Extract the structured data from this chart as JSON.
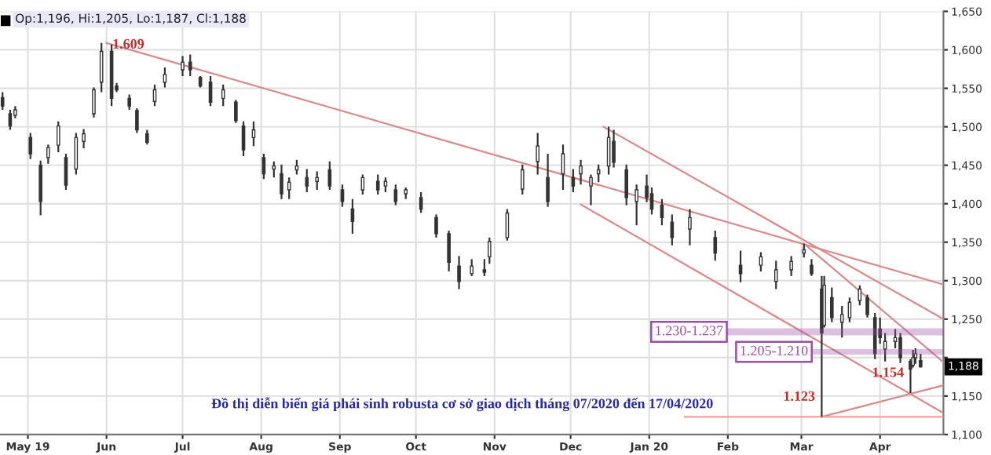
{
  "chart_data": {
    "type": "candlestick",
    "x": [
      "2019-04-21",
      "2019-04-24",
      "2019-04-26",
      "2019-05-02",
      "2019-05-06",
      "2019-05-09",
      "2019-05-13",
      "2019-05-16",
      "2019-05-20",
      "2019-05-23",
      "2019-05-27",
      "2019-05-30",
      "2019-06-03",
      "2019-06-05",
      "2019-06-10",
      "2019-06-13",
      "2019-06-17",
      "2019-06-20",
      "2019-06-24",
      "2019-07-01",
      "2019-07-04",
      "2019-07-08",
      "2019-07-12",
      "2019-07-17",
      "2019-07-22",
      "2019-07-25",
      "2019-07-29",
      "2019-08-02",
      "2019-08-06",
      "2019-08-09",
      "2019-08-12",
      "2019-08-15",
      "2019-08-19",
      "2019-08-23",
      "2019-08-28",
      "2019-09-02",
      "2019-09-06",
      "2019-09-10",
      "2019-09-16",
      "2019-09-19",
      "2019-09-23",
      "2019-09-27",
      "2019-10-03",
      "2019-10-09",
      "2019-10-14",
      "2019-10-18",
      "2019-10-23",
      "2019-10-28",
      "2019-10-30",
      "2019-11-06",
      "2019-11-12",
      "2019-11-18",
      "2019-11-22",
      "2019-11-28",
      "2019-12-02",
      "2019-12-05",
      "2019-12-09",
      "2019-12-12",
      "2019-12-16",
      "2019-12-18",
      "2019-12-23",
      "2019-12-27",
      "2019-12-31",
      "2020-01-02",
      "2020-01-06",
      "2020-01-10",
      "2020-01-17",
      "2020-01-27",
      "2020-02-06",
      "2020-02-14",
      "2020-02-20",
      "2020-02-26",
      "2020-03-02",
      "2020-03-05",
      "2020-03-09",
      "2020-03-10",
      "2020-03-13",
      "2020-03-17",
      "2020-03-20",
      "2020-03-24",
      "2020-03-27",
      "2020-03-30",
      "2020-04-01",
      "2020-04-03",
      "2020-04-07",
      "2020-04-09",
      "2020-04-13",
      "2020-04-14",
      "2020-04-15",
      "2020-04-17"
    ],
    "ohlc": [
      [
        1538,
        1545,
        1522,
        1527
      ],
      [
        1517,
        1522,
        1496,
        1501
      ],
      [
        1515,
        1527,
        1511,
        1522
      ],
      [
        1486,
        1492,
        1458,
        1465
      ],
      [
        1450,
        1456,
        1385,
        1403
      ],
      [
        1460,
        1477,
        1452,
        1473
      ],
      [
        1476,
        1507,
        1467,
        1501
      ],
      [
        1460,
        1465,
        1418,
        1424
      ],
      [
        1445,
        1492,
        1438,
        1486
      ],
      [
        1481,
        1497,
        1472,
        1491
      ],
      [
        1517,
        1551,
        1512,
        1548
      ],
      [
        1558,
        1609,
        1545,
        1598
      ],
      [
        1598,
        1607,
        1527,
        1537
      ],
      [
        1553,
        1557,
        1545,
        1548
      ],
      [
        1537,
        1542,
        1522,
        1527
      ],
      [
        1521,
        1524,
        1492,
        1496
      ],
      [
        1491,
        1496,
        1477,
        1480
      ],
      [
        1533,
        1555,
        1527,
        1548
      ],
      [
        1558,
        1577,
        1551,
        1568
      ],
      [
        1574,
        1592,
        1566,
        1584
      ],
      [
        1584,
        1594,
        1566,
        1574
      ],
      [
        1564,
        1566,
        1551,
        1553
      ],
      [
        1558,
        1566,
        1527,
        1532
      ],
      [
        1537,
        1555,
        1527,
        1548
      ],
      [
        1532,
        1535,
        1505,
        1508
      ],
      [
        1501,
        1507,
        1462,
        1470
      ],
      [
        1486,
        1507,
        1475,
        1496
      ],
      [
        1460,
        1465,
        1432,
        1439
      ],
      [
        1445,
        1455,
        1434,
        1449
      ],
      [
        1439,
        1451,
        1406,
        1413
      ],
      [
        1418,
        1434,
        1406,
        1428
      ],
      [
        1444,
        1457,
        1438,
        1449
      ],
      [
        1434,
        1445,
        1415,
        1423
      ],
      [
        1429,
        1442,
        1418,
        1434
      ],
      [
        1444,
        1455,
        1418,
        1423
      ],
      [
        1418,
        1425,
        1396,
        1403
      ],
      [
        1393,
        1406,
        1361,
        1377
      ],
      [
        1418,
        1438,
        1412,
        1434
      ],
      [
        1429,
        1438,
        1412,
        1418
      ],
      [
        1423,
        1434,
        1415,
        1429
      ],
      [
        1418,
        1425,
        1398,
        1403
      ],
      [
        1413,
        1421,
        1406,
        1418
      ],
      [
        1408,
        1415,
        1388,
        1393
      ],
      [
        1382,
        1386,
        1356,
        1361
      ],
      [
        1361,
        1365,
        1312,
        1324
      ],
      [
        1319,
        1332,
        1289,
        1299
      ],
      [
        1309,
        1328,
        1306,
        1319
      ],
      [
        1314,
        1328,
        1306,
        1311
      ],
      [
        1331,
        1356,
        1322,
        1351
      ],
      [
        1356,
        1393,
        1352,
        1388
      ],
      [
        1419,
        1451,
        1412,
        1444
      ],
      [
        1455,
        1492,
        1438,
        1475
      ],
      [
        1434,
        1465,
        1396,
        1403
      ],
      [
        1439,
        1477,
        1418,
        1465
      ],
      [
        1434,
        1445,
        1415,
        1423
      ],
      [
        1439,
        1457,
        1425,
        1449
      ],
      [
        1423,
        1438,
        1398,
        1434
      ],
      [
        1439,
        1451,
        1428,
        1444
      ],
      [
        1449,
        1500,
        1438,
        1486
      ],
      [
        1481,
        1496,
        1447,
        1454
      ],
      [
        1444,
        1451,
        1398,
        1408
      ],
      [
        1403,
        1425,
        1372,
        1418
      ],
      [
        1423,
        1438,
        1402,
        1408
      ],
      [
        1413,
        1421,
        1386,
        1393
      ],
      [
        1398,
        1406,
        1372,
        1382
      ],
      [
        1376,
        1386,
        1346,
        1356
      ],
      [
        1367,
        1393,
        1346,
        1382
      ],
      [
        1356,
        1365,
        1326,
        1336
      ],
      [
        1320,
        1339,
        1298,
        1309
      ],
      [
        1320,
        1337,
        1312,
        1331
      ],
      [
        1299,
        1326,
        1289,
        1314
      ],
      [
        1314,
        1332,
        1306,
        1325
      ],
      [
        1336,
        1348,
        1330,
        1340
      ],
      [
        1320,
        1328,
        1306,
        1309
      ],
      [
        1289,
        1306,
        1123,
        1232
      ],
      [
        1242,
        1306,
        1239,
        1294
      ],
      [
        1278,
        1291,
        1246,
        1252
      ],
      [
        1246,
        1267,
        1226,
        1256
      ],
      [
        1252,
        1278,
        1246,
        1272
      ],
      [
        1274,
        1294,
        1268,
        1289
      ],
      [
        1278,
        1282,
        1252,
        1256
      ],
      [
        1252,
        1258,
        1198,
        1205
      ],
      [
        1237,
        1252,
        1218,
        1226
      ],
      [
        1211,
        1232,
        1195,
        1221
      ],
      [
        1221,
        1237,
        1212,
        1226
      ],
      [
        1226,
        1232,
        1193,
        1200
      ],
      [
        1195,
        1198,
        1154,
        1185
      ],
      [
        1190,
        1210,
        1187,
        1200
      ],
      [
        1200,
        1212,
        1192,
        1205
      ],
      [
        1196,
        1205,
        1187,
        1188
      ]
    ],
    "color": "#333333",
    "series": [
      {
        "type": "line",
        "color": "#d98a8a",
        "x": [
          "2019-06-01",
          "2020-04-26"
        ],
        "values": [
          1609,
          1295
        ]
      },
      {
        "type": "line",
        "color": "#d98a8a",
        "x": [
          "2019-12-14",
          "2020-04-26"
        ],
        "values": [
          1500,
          1250
        ]
      },
      {
        "type": "line",
        "color": "#d98a8a",
        "x": [
          "2020-03-02",
          "2020-04-26"
        ],
        "values": [
          1348,
          1194
        ]
      },
      {
        "type": "line",
        "color": "#d98a8a",
        "x": [
          "2019-12-05",
          "2020-04-26"
        ],
        "values": [
          1399,
          1128
        ]
      },
      {
        "type": "line",
        "color": "#d98a8a",
        "x": [
          "2020-03-09",
          "2020-04-26"
        ],
        "values": [
          1123,
          1164
        ]
      },
      {
        "type": "line",
        "color": "#f2a0a0",
        "x": [
          "2020-01-15",
          "2020-04-26"
        ],
        "values": [
          1123,
          1123
        ]
      }
    ],
    "bands": [
      {
        "axis": "y",
        "from": 1230,
        "to": 1237,
        "label": "1.230-1.237",
        "color": "#9b4fa8"
      },
      {
        "axis": "y",
        "from": 1205,
        "to": 1210,
        "label": "1.205-1.210",
        "color": "#9b4fa8"
      }
    ],
    "annotations": [
      "Op:1,196, Hi:1,205, Lo:1,187, Cl:1,188",
      "Đồ thị diễn biến giá phái sinh robusta cơ sở giao dịch tháng 07/2020 đến 17/04/2020",
      {
        "text": "1.609",
        "x": "2019-05-30",
        "y": 1609
      },
      {
        "text": "1.123",
        "x": "2020-03-09",
        "y": 1123
      },
      {
        "text": "1.154",
        "x": "2020-04-13",
        "y": 1154
      },
      {
        "text": "1,188",
        "x": "2020-04-17",
        "y": 1188
      }
    ],
    "xlim": [
      "2019-04-20",
      "2020-04-26"
    ],
    "xticks": [
      {
        "value": "2019-05-01",
        "label": "May 19"
      },
      {
        "value": "2019-06-01",
        "label": "Jun"
      },
      {
        "value": "2019-07-01",
        "label": "Jul"
      },
      {
        "value": "2019-08-01",
        "label": "Aug"
      },
      {
        "value": "2019-09-01",
        "label": "Sep"
      },
      {
        "value": "2019-10-01",
        "label": "Oct"
      },
      {
        "value": "2019-11-01",
        "label": "Nov"
      },
      {
        "value": "2019-12-01",
        "label": "Dec"
      },
      {
        "value": "2020-01-01",
        "label": "Jan 20"
      },
      {
        "value": "2020-02-01",
        "label": "Feb"
      },
      {
        "value": "2020-03-01",
        "label": "Mar"
      },
      {
        "value": "2020-04-01",
        "label": "Apr"
      }
    ],
    "ylim": [
      1100,
      1650
    ],
    "yticks": [
      {
        "value": 1100,
        "label": "1,100"
      },
      {
        "value": 1150,
        "label": "1,150"
      },
      {
        "value": 1200,
        "label": null
      },
      {
        "value": 1250,
        "label": "1,250"
      },
      {
        "value": 1300,
        "label": "1,300"
      },
      {
        "value": 1350,
        "label": "1,350"
      },
      {
        "value": 1400,
        "label": "1,400"
      },
      {
        "value": 1450,
        "label": "1,450"
      },
      {
        "value": 1500,
        "label": "1,500"
      },
      {
        "value": 1550,
        "label": "1,550"
      },
      {
        "value": 1600,
        "label": "1,600"
      },
      {
        "value": 1650,
        "label": "1,650"
      }
    ],
    "grid": true,
    "legend": false
  }
}
